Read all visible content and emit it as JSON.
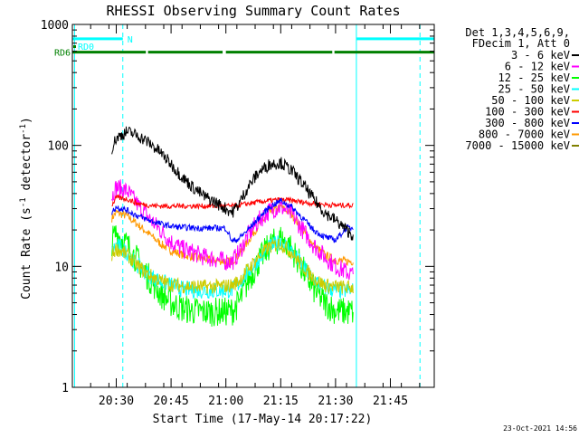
{
  "chart_data": {
    "type": "line",
    "title": "RHESSI Observing Summary Count Rates",
    "xlabel": "Start Time (17-May-14 20:17:22)",
    "ylabel": "Count Rate (s",
    "ylabel_sup": "-1",
    "ylabel_mid": " detector",
    "ylabel_end": ")",
    "yscale": "log",
    "ylim": [
      1,
      1000
    ],
    "xlim_minutes": [
      20.3,
      21.95
    ],
    "y_ticks": [
      {
        "value": 1,
        "label": "1"
      },
      {
        "value": 10,
        "label": "10"
      },
      {
        "value": 100,
        "label": "100"
      },
      {
        "value": 1000,
        "label": "1000"
      }
    ],
    "x_ticks": [
      {
        "value": 20.5,
        "label": "20:30"
      },
      {
        "value": 20.75,
        "label": "20:45"
      },
      {
        "value": 21.0,
        "label": "21:00"
      },
      {
        "value": 21.25,
        "label": "21:15"
      },
      {
        "value": 21.5,
        "label": "21:30"
      },
      {
        "value": 21.75,
        "label": "21:45"
      }
    ],
    "legend_header": [
      "Det 1,3,4,5,6,9,",
      "FDecim 1, Att 0"
    ],
    "legend_position": "right",
    "series": [
      {
        "name": "3 - 6 keV",
        "color": "#000000",
        "t": [
          20.48,
          20.5,
          20.55,
          20.6,
          20.65,
          20.7,
          20.75,
          20.8,
          20.85,
          20.9,
          20.95,
          21.0,
          21.03,
          21.06,
          21.1,
          21.15,
          21.2,
          21.25,
          21.3,
          21.35,
          21.4,
          21.45,
          21.5,
          21.55,
          21.58
        ],
        "y": [
          95,
          115,
          130,
          120,
          105,
          88,
          70,
          55,
          45,
          38,
          34,
          30,
          28,
          33,
          45,
          60,
          70,
          72,
          62,
          48,
          36,
          28,
          24,
          20,
          18
        ]
      },
      {
        "name": "6 - 12 keV",
        "color": "#ff00ff",
        "t": [
          20.48,
          20.5,
          20.55,
          20.6,
          20.65,
          20.7,
          20.75,
          20.8,
          20.85,
          20.9,
          20.95,
          21.0,
          21.03,
          21.06,
          21.1,
          21.15,
          21.2,
          21.25,
          21.3,
          21.35,
          21.4,
          21.45,
          21.5,
          21.55,
          21.58
        ],
        "y": [
          38,
          45,
          42,
          32,
          25,
          20,
          16,
          14,
          13,
          12,
          11.5,
          11,
          11,
          13,
          18,
          24,
          29,
          31,
          27,
          20,
          15,
          12,
          10,
          9,
          8.5
        ]
      },
      {
        "name": "12 - 25 keV",
        "color": "#00ff00",
        "t": [
          20.48,
          20.5,
          20.55,
          20.6,
          20.65,
          20.7,
          20.75,
          20.8,
          20.85,
          20.9,
          20.95,
          21.0,
          21.03,
          21.06,
          21.1,
          21.15,
          21.2,
          21.25,
          21.3,
          21.35,
          21.4,
          21.45,
          21.5,
          21.55,
          21.58
        ],
        "y": [
          16,
          19,
          15,
          11,
          8,
          6,
          5,
          4.5,
          4.3,
          4.2,
          4.2,
          4.2,
          4.3,
          5,
          7.5,
          11,
          15,
          17,
          14,
          9.5,
          6.5,
          5,
          4.3,
          4.2,
          4.2
        ]
      },
      {
        "name": "25 - 50 keV",
        "color": "#00ffff",
        "t": [
          20.48,
          20.5,
          20.55,
          20.6,
          20.65,
          20.7,
          20.75,
          20.8,
          20.85,
          20.9,
          20.95,
          21.0,
          21.03,
          21.06,
          21.1,
          21.15,
          21.2,
          21.25,
          21.3,
          21.35,
          21.4,
          21.45,
          21.5,
          21.55,
          21.58
        ],
        "y": [
          13,
          15,
          13,
          10,
          8.5,
          7.5,
          7,
          6.5,
          6.4,
          6.3,
          6.3,
          6.3,
          6.4,
          7.2,
          9,
          11.5,
          14.5,
          16,
          13.5,
          10,
          7.8,
          6.7,
          6.3,
          6.3,
          6.3
        ]
      },
      {
        "name": "50 - 100 keV",
        "color": "#cccc00",
        "t": [
          20.48,
          20.5,
          20.55,
          20.6,
          20.65,
          20.7,
          20.75,
          20.8,
          20.85,
          20.9,
          20.95,
          21.0,
          21.03,
          21.06,
          21.1,
          21.15,
          21.2,
          21.25,
          21.3,
          21.35,
          21.4,
          21.45,
          21.5,
          21.55,
          21.58
        ],
        "y": [
          12.5,
          14,
          12.5,
          10,
          8.5,
          7.6,
          7.1,
          6.9,
          6.8,
          6.8,
          6.8,
          6.9,
          7,
          7.6,
          9.5,
          12,
          14.5,
          15.5,
          13,
          10,
          8,
          7,
          6.8,
          6.7,
          6.7
        ]
      },
      {
        "name": "100 - 300 keV",
        "color": "#ff0000",
        "t": [
          20.48,
          20.5,
          20.55,
          20.6,
          20.65,
          20.7,
          20.75,
          20.8,
          20.85,
          20.9,
          20.95,
          21.0,
          21.03,
          21.06,
          21.1,
          21.15,
          21.2,
          21.25,
          21.3,
          21.35,
          21.4,
          21.45,
          21.5,
          21.55,
          21.58
        ],
        "y": [
          32,
          37,
          36,
          33,
          32,
          31.5,
          31.5,
          31.5,
          31.5,
          31.5,
          31.5,
          31.5,
          31.5,
          32,
          33,
          34,
          35,
          35.5,
          35,
          34,
          33,
          32.5,
          32,
          32,
          32
        ]
      },
      {
        "name": "300 - 800 keV",
        "color": "#0000ff",
        "t": [
          20.48,
          20.5,
          20.55,
          20.6,
          20.65,
          20.7,
          20.75,
          20.8,
          20.85,
          20.9,
          20.95,
          21.0,
          21.03,
          21.06,
          21.1,
          21.15,
          21.2,
          21.25,
          21.3,
          21.35,
          21.4,
          21.45,
          21.5,
          21.55,
          21.58
        ],
        "y": [
          28,
          31,
          29,
          26,
          24,
          22.5,
          21.5,
          21,
          20.8,
          20.7,
          20.7,
          20.7,
          16,
          17,
          20,
          25,
          31,
          35,
          31,
          25,
          20,
          17.5,
          16.5,
          20.8,
          20.8
        ]
      },
      {
        "name": "800 - 7000 keV",
        "color": "#ff9900",
        "t": [
          20.48,
          20.5,
          20.55,
          20.6,
          20.65,
          20.7,
          20.75,
          20.8,
          20.85,
          20.9,
          20.95,
          21.0,
          21.03,
          21.06,
          21.1,
          21.15,
          21.2,
          21.25,
          21.3,
          21.35,
          21.4,
          21.45,
          21.5,
          21.55,
          21.58
        ],
        "y": [
          25,
          28,
          26,
          22,
          18.5,
          15.5,
          13.5,
          12.5,
          12,
          11.5,
          11.2,
          11,
          11,
          12.5,
          16,
          22,
          28,
          31,
          27,
          20,
          15,
          12.5,
          11.2,
          11,
          11
        ]
      },
      {
        "name": "7000 - 15000 keV",
        "color": "#808000",
        "t": [],
        "y": []
      }
    ],
    "state_bars": [
      {
        "label": "RD0",
        "color": "#00ffff",
        "segments": [
          [
            20.3,
            20.53
          ],
          [
            21.595,
            21.95
          ]
        ],
        "level": 760,
        "marker": "N",
        "marker_t": 20.53
      },
      {
        "label": "RD6",
        "color": "#008000",
        "segments": [
          [
            20.3,
            20.635
          ],
          [
            20.645,
            20.985
          ],
          [
            21.0,
            21.485
          ],
          [
            21.495,
            21.95
          ]
        ],
        "level": 590
      }
    ],
    "vertical_markers": [
      {
        "t": 20.31,
        "color": "#00ffff",
        "style": "solid"
      },
      {
        "t": 20.53,
        "color": "#00ffff",
        "style": "dashed"
      },
      {
        "t": 21.595,
        "color": "#00ffff",
        "style": "solid"
      },
      {
        "t": 21.885,
        "color": "#00ffff",
        "style": "dashed"
      }
    ],
    "timestamp": "23-Oct-2021 14:56"
  }
}
